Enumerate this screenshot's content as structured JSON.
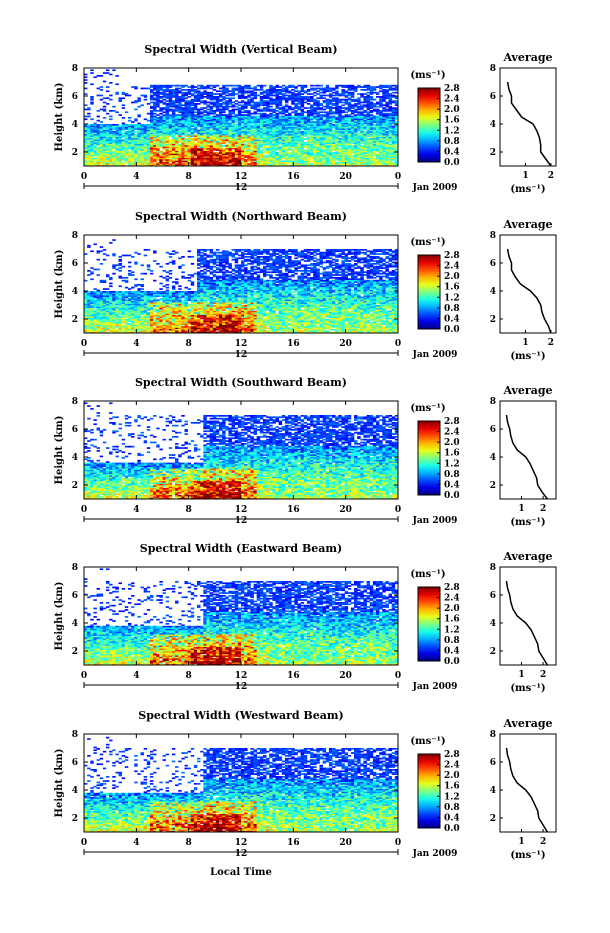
{
  "panels": [
    {
      "title": "Spectral Width (Vertical Beam)",
      "avg_title": "Average"
    },
    {
      "title": "Spectral Width (Northward Beam)",
      "avg_title": "Average"
    },
    {
      "title": "Spectral Width (Southward Beam)",
      "avg_title": "Average"
    },
    {
      "title": "Spectral Width (Eastward Beam)",
      "avg_title": "Average"
    },
    {
      "title": "Spectral Width (Westward Beam)",
      "avg_title": "Average"
    }
  ],
  "shared": {
    "ylabel": "Height (km)",
    "yticks": [
      "2",
      "4",
      "6",
      "8"
    ],
    "xticks": [
      "0",
      "4",
      "8",
      "12",
      "16",
      "20",
      "0"
    ],
    "day_label": "12",
    "date_label": "Jan 2009",
    "xlabel": "Local Time",
    "colorbar_unit": "(ms⁻¹)",
    "avg_unit": "(ms⁻¹)",
    "avg_yticks": [
      "2",
      "4",
      "6",
      "8"
    ],
    "avg_xticks": [
      "1",
      "2"
    ]
  },
  "colorbar_ticks": [
    [
      "0.0",
      "0.4",
      "0.8",
      "1.2",
      "1.6",
      "2.0",
      "2.4",
      "2.8"
    ],
    [
      "0.0",
      "0.4",
      "0.8",
      "1.2",
      "1.6",
      "2.0",
      "2.4",
      "2.8"
    ],
    [
      "0.0",
      "0.4",
      "0.8",
      "1.2",
      "1.6",
      "2.0",
      "2.4",
      "2.8"
    ],
    [
      "0.0",
      "0.4",
      "0.8",
      "1.2",
      "1.6",
      "2.0",
      "2.4",
      "2.8"
    ],
    [
      "0.0",
      "0.4",
      "0.8",
      "1.2",
      "1.6",
      "2.0",
      "2.4",
      "2.8"
    ]
  ],
  "chart_data": [
    {
      "type": "heatmap",
      "title": "Spectral Width (Vertical Beam)",
      "xlabel": "",
      "ylabel": "Height (km)",
      "xlim": [
        0,
        24
      ],
      "ylim": [
        1,
        8
      ],
      "zlim": [
        0,
        2.8
      ],
      "colormap": "jet",
      "dense_top_early_km": 4.0,
      "dense_top_late_km": 4.6,
      "sparse_top_km": 6.8,
      "transition_hour": 5,
      "avg_profile": {
        "height_km": [
          1.0,
          1.5,
          2.0,
          2.5,
          3.0,
          3.5,
          4.0,
          4.5,
          5.0,
          5.5,
          6.0,
          6.5,
          7.0
        ],
        "width_ms": [
          2.0,
          1.8,
          1.6,
          1.6,
          1.55,
          1.45,
          1.3,
          0.85,
          0.65,
          0.45,
          0.45,
          0.35,
          0.3
        ],
        "xlim": [
          0,
          2.2
        ]
      }
    },
    {
      "type": "heatmap",
      "title": "Spectral Width (Northward Beam)",
      "xlabel": "",
      "ylabel": "Height (km)",
      "xlim": [
        0,
        24
      ],
      "ylim": [
        1,
        8
      ],
      "zlim": [
        0,
        2.8
      ],
      "colormap": "jet",
      "dense_top_early_km": 4.0,
      "dense_top_late_km": 4.8,
      "sparse_top_km": 7.0,
      "transition_hour": 8.5,
      "avg_profile": {
        "height_km": [
          1.0,
          1.5,
          2.0,
          2.5,
          3.0,
          3.5,
          4.0,
          4.5,
          5.0,
          5.5,
          6.0,
          6.5,
          7.0
        ],
        "width_ms": [
          2.0,
          1.9,
          1.75,
          1.65,
          1.6,
          1.45,
          1.2,
          0.8,
          0.6,
          0.45,
          0.45,
          0.35,
          0.3
        ],
        "xlim": [
          0,
          2.2
        ]
      }
    },
    {
      "type": "heatmap",
      "title": "Spectral Width (Southward Beam)",
      "xlabel": "",
      "ylabel": "Height (km)",
      "xlim": [
        0,
        24
      ],
      "ylim": [
        1,
        8
      ],
      "zlim": [
        0,
        2.8
      ],
      "colormap": "jet",
      "dense_top_early_km": 3.6,
      "dense_top_late_km": 4.8,
      "sparse_top_km": 7.0,
      "transition_hour": 9,
      "avg_profile": {
        "height_km": [
          1.0,
          1.5,
          2.0,
          2.5,
          3.0,
          3.5,
          4.0,
          4.5,
          5.0,
          5.5,
          6.0,
          6.5,
          7.0
        ],
        "width_ms": [
          2.2,
          1.95,
          1.75,
          1.7,
          1.55,
          1.4,
          1.2,
          0.8,
          0.6,
          0.5,
          0.45,
          0.35,
          0.3
        ],
        "xlim": [
          0,
          2.6
        ]
      }
    },
    {
      "type": "heatmap",
      "title": "Spectral Width (Eastward Beam)",
      "xlabel": "",
      "ylabel": "Height (km)",
      "xlim": [
        0,
        24
      ],
      "ylim": [
        1,
        8
      ],
      "zlim": [
        0,
        2.8
      ],
      "colormap": "jet",
      "dense_top_early_km": 3.8,
      "dense_top_late_km": 4.8,
      "sparse_top_km": 7.0,
      "transition_hour": 9,
      "avg_profile": {
        "height_km": [
          1.0,
          1.5,
          2.0,
          2.5,
          3.0,
          3.5,
          4.0,
          4.5,
          5.0,
          5.5,
          6.0,
          6.5,
          7.0
        ],
        "width_ms": [
          2.2,
          2.0,
          1.8,
          1.75,
          1.6,
          1.45,
          1.2,
          0.8,
          0.6,
          0.5,
          0.45,
          0.35,
          0.3
        ],
        "xlim": [
          0,
          2.6
        ]
      }
    },
    {
      "type": "heatmap",
      "title": "Spectral Width (Westward Beam)",
      "xlabel": "Local Time",
      "ylabel": "Height (km)",
      "xlim": [
        0,
        24
      ],
      "ylim": [
        1,
        8
      ],
      "zlim": [
        0,
        2.8
      ],
      "colormap": "jet",
      "dense_top_early_km": 3.8,
      "dense_top_late_km": 4.8,
      "sparse_top_km": 7.0,
      "transition_hour": 9,
      "avg_profile": {
        "height_km": [
          1.0,
          1.5,
          2.0,
          2.5,
          3.0,
          3.5,
          4.0,
          4.5,
          5.0,
          5.5,
          6.0,
          6.5,
          7.0
        ],
        "width_ms": [
          2.2,
          2.0,
          1.8,
          1.75,
          1.6,
          1.45,
          1.2,
          0.8,
          0.6,
          0.5,
          0.45,
          0.35,
          0.3
        ],
        "xlim": [
          0,
          2.6
        ]
      }
    }
  ]
}
